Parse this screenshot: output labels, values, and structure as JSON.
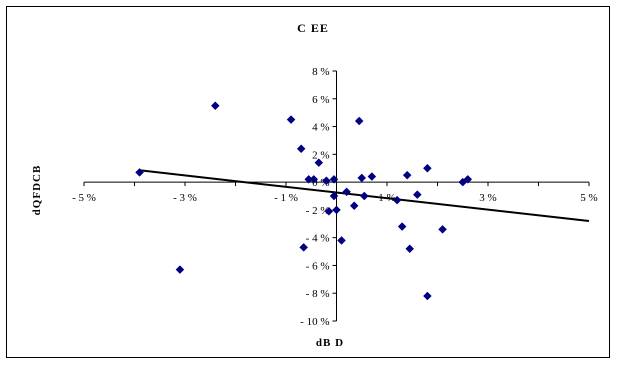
{
  "chart_data": {
    "type": "scatter",
    "title": "C EE",
    "xlabel": "dB D",
    "ylabel": "dQFDCB",
    "xlim": [
      -5,
      5
    ],
    "ylim": [
      -10,
      8
    ],
    "x_ticks": [
      "- 5  %",
      "- 3  %",
      "- 1  %",
      "1  %",
      "3  %",
      "5  %"
    ],
    "y_ticks": [
      "8  %",
      "6  %",
      "4  %",
      "2  %",
      "0  %",
      "- 2  %",
      "- 4  %",
      "- 6  %",
      "- 8  %",
      "- 10  %"
    ],
    "marker_color": "#000080",
    "series": [
      {
        "points": [
          [
            -3.9,
            0.7
          ],
          [
            -2.4,
            5.5
          ],
          [
            -3.1,
            -6.3
          ],
          [
            -0.9,
            4.5
          ],
          [
            -0.7,
            2.4
          ],
          [
            -0.55,
            0.2
          ],
          [
            -0.45,
            0.2
          ],
          [
            -0.65,
            -4.7
          ],
          [
            -0.35,
            1.4
          ],
          [
            -0.2,
            0.1
          ],
          [
            -0.15,
            -2.1
          ],
          [
            -0.05,
            0.2
          ],
          [
            -0.05,
            -1.0
          ],
          [
            0,
            -2.0
          ],
          [
            0.1,
            -4.2
          ],
          [
            0.2,
            -0.7
          ],
          [
            0.35,
            -1.7
          ],
          [
            0.45,
            4.4
          ],
          [
            0.5,
            0.3
          ],
          [
            0.55,
            -1.0
          ],
          [
            0.7,
            0.4
          ],
          [
            1.2,
            -1.3
          ],
          [
            1.3,
            -3.2
          ],
          [
            1.4,
            0.5
          ],
          [
            1.45,
            -4.8
          ],
          [
            1.6,
            -0.9
          ],
          [
            1.8,
            1.0
          ],
          [
            1.8,
            -8.2
          ],
          [
            2.1,
            -3.4
          ],
          [
            2.5,
            0.0
          ],
          [
            2.6,
            0.2
          ]
        ]
      }
    ],
    "trendline": {
      "from": [
        -3.9,
        0.85
      ],
      "to": [
        5.0,
        -2.8
      ]
    },
    "grid": false,
    "legend": "none"
  }
}
